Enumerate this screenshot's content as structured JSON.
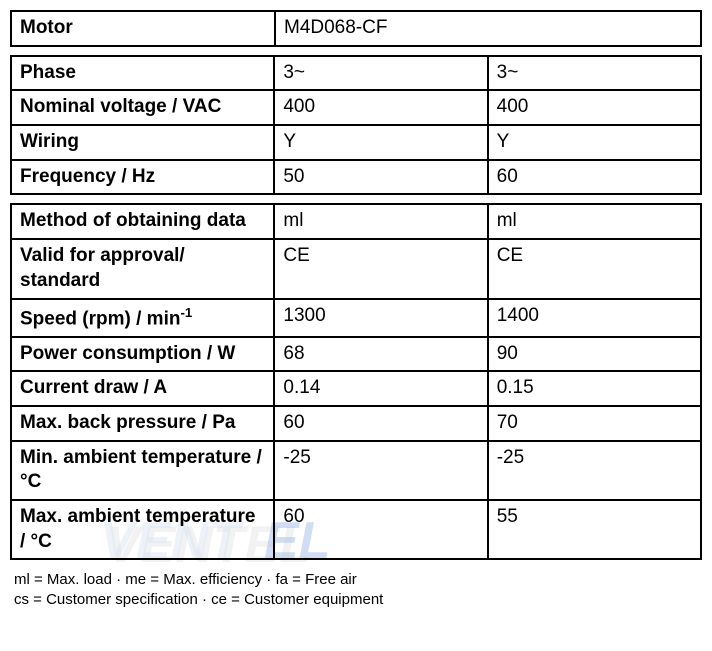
{
  "motorTable": {
    "label": "Motor",
    "value": "M4D068-CF"
  },
  "table2": {
    "rows": [
      {
        "label": "Phase",
        "c1": "3~",
        "c2": "3~"
      },
      {
        "label": "Nominal voltage / VAC",
        "c1": "400",
        "c2": "400"
      },
      {
        "label": "Wiring",
        "c1": "Y",
        "c2": "Y"
      },
      {
        "label": "Frequency / Hz",
        "c1": "50",
        "c2": "60"
      }
    ]
  },
  "table3": {
    "rows": [
      {
        "label": "Method of obtaining data",
        "c1": "ml",
        "c2": "ml"
      },
      {
        "label": "Valid for approval/ standard",
        "c1": "CE",
        "c2": "CE"
      },
      {
        "labelHtml": "Speed (rpm) / min<sup>-1</sup>",
        "c1": "1300",
        "c2": "1400"
      },
      {
        "label": "Power consumption / W",
        "c1": "68",
        "c2": "90"
      },
      {
        "label": "Current draw / A",
        "c1": "0.14",
        "c2": "0.15"
      },
      {
        "label": "Max. back pressure / Pa",
        "c1": "60",
        "c2": "70"
      },
      {
        "label": "Min. ambient temperature / °C",
        "c1": "-25",
        "c2": "-25"
      },
      {
        "label": "Max. ambient temperature / °C",
        "c1": "60",
        "c2": "55"
      }
    ]
  },
  "legend": {
    "line1": "ml = Max. load · me = Max. efficiency · fa = Free air",
    "line2": "cs = Customer specification · ce = Customer equipment"
  },
  "watermark": {
    "text": "VENTEL",
    "shadow_color": "#c9c9c9",
    "main_color": "#b8c9e8",
    "accent_color": "#4a7bd1"
  }
}
